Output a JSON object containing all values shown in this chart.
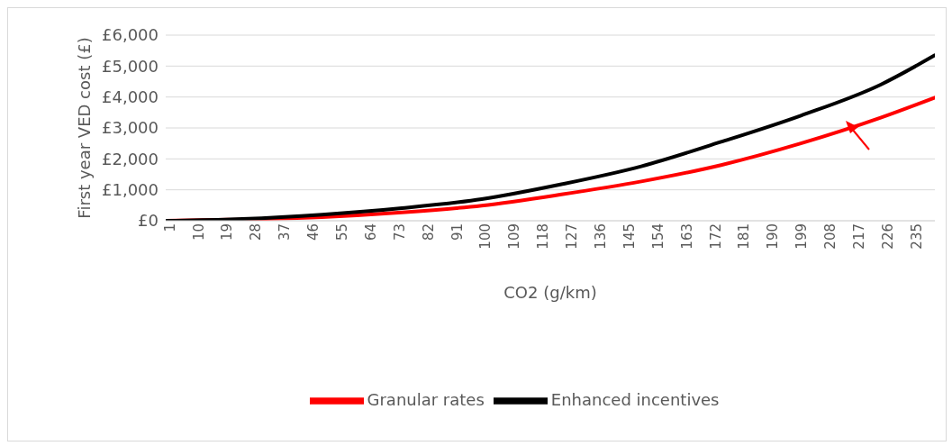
{
  "chart_data": {
    "type": "line",
    "xlabel": "CO2 (g/km)",
    "ylabel": "First year VED cost (£)",
    "x": [
      1,
      25,
      50,
      75,
      100,
      125,
      150,
      175,
      200,
      225,
      242
    ],
    "series": [
      {
        "name": "Granular rates",
        "color": "#ff0000",
        "values": [
          0,
          40,
          120,
          270,
          490,
          850,
          1270,
          1800,
          2500,
          3330,
          3980
        ]
      },
      {
        "name": "Enhanced incentives",
        "color": "#000000",
        "values": [
          0,
          60,
          200,
          410,
          700,
          1180,
          1760,
          2550,
          3400,
          4400,
          5350
        ]
      }
    ],
    "xlim": [
      1,
      242
    ],
    "xticks": [
      1,
      10,
      19,
      28,
      37,
      46,
      55,
      64,
      73,
      82,
      91,
      100,
      109,
      118,
      127,
      136,
      145,
      154,
      163,
      172,
      181,
      190,
      199,
      208,
      217,
      226,
      235
    ],
    "ylim": [
      0,
      6000
    ],
    "yticks": [
      {
        "value": 0,
        "label": "£0"
      },
      {
        "value": 1000,
        "label": "£1,000"
      },
      {
        "value": 2000,
        "label": "£2,000"
      },
      {
        "value": 3000,
        "label": "£3,000"
      },
      {
        "value": 4000,
        "label": "£4,000"
      },
      {
        "value": 5000,
        "label": "£5,000"
      },
      {
        "value": 6000,
        "label": "£6,000"
      }
    ],
    "grid": "y",
    "legend": "bottom",
    "marker": "none",
    "line_style": "solid"
  }
}
